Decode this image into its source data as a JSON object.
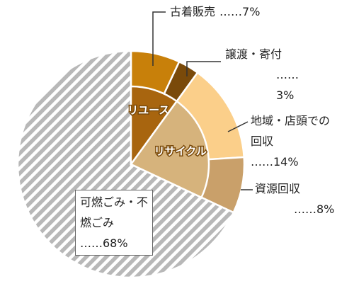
{
  "chart_data": {
    "type": "pie",
    "groups": [
      {
        "name": "リユース",
        "color": "#a8650f",
        "categories": [
          "古着販売",
          "譲渡・寄付"
        ],
        "values": [
          7,
          3
        ],
        "value_labels": [
          "……7%",
          "……3%"
        ],
        "colors": [
          "#c8800a",
          "#7a4a0a"
        ]
      },
      {
        "name": "リサイクル",
        "color": "#d6b37c",
        "categories": [
          "地域・店頭での回収",
          "資源回収"
        ],
        "values": [
          14,
          8
        ],
        "value_labels": [
          "……14%",
          "……8%"
        ],
        "colors": [
          "#fbcf8a",
          "#c9a06a"
        ]
      },
      {
        "categories": [
          "可燃ごみ・不燃ごみ"
        ],
        "values": [
          68
        ],
        "value_labels": [
          "……68%"
        ],
        "colors": [
          "striped"
        ]
      }
    ]
  }
}
